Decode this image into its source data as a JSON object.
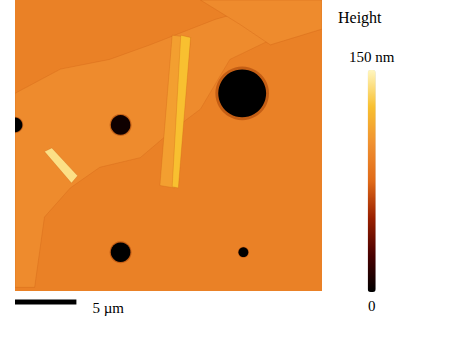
{
  "chart_data": {
    "type": "height_map",
    "title": "Height",
    "tick_labels": false,
    "xlim": [
      0,
      25
    ],
    "ylim": [
      0,
      24
    ],
    "background": 90,
    "colorbar": {
      "range": [
        0,
        150
      ],
      "ticks": [
        {
          "value": 150,
          "label": "150 nm"
        },
        0
      ]
    },
    "scale_bar": {
      "length": 5,
      "label": "5 µm"
    },
    "features": [
      {
        "shape": "polygon",
        "height": 97,
        "points": [
          [
            0,
            7.7
          ],
          [
            3.7,
            5.7
          ],
          [
            7.7,
            4.9
          ],
          [
            11.0,
            3.7
          ],
          [
            16.3,
            1.6
          ],
          [
            19.1,
            0.8
          ],
          [
            21.6,
            2.9
          ],
          [
            17.5,
            4.9
          ],
          [
            15.1,
            9.0
          ],
          [
            13.0,
            10.6
          ],
          [
            10.2,
            13.0
          ],
          [
            6.9,
            13.8
          ],
          [
            4.5,
            15.5
          ],
          [
            2.4,
            17.9
          ],
          [
            1.6,
            23.7
          ],
          [
            0,
            23.7
          ]
        ]
      },
      {
        "shape": "polygon",
        "height": 97,
        "points": [
          [
            15.1,
            0
          ],
          [
            25,
            0
          ],
          [
            25,
            2.4
          ],
          [
            20.8,
            3.7
          ],
          [
            18.3,
            2.0
          ]
        ]
      },
      {
        "shape": "polygon",
        "height": 108,
        "points": [
          [
            12.8,
            2.9
          ],
          [
            14.3,
            3.1
          ],
          [
            13.0,
            15.5
          ],
          [
            11.8,
            15.3
          ]
        ]
      },
      {
        "shape": "polygon",
        "height": 125,
        "points": [
          [
            13.5,
            2.9
          ],
          [
            14.3,
            3.1
          ],
          [
            13.3,
            15.5
          ],
          [
            12.8,
            15.4
          ]
        ]
      },
      {
        "shape": "polygon",
        "height": 140,
        "points": [
          [
            2.4,
            12.5
          ],
          [
            3.0,
            12.2
          ],
          [
            5.1,
            14.5
          ],
          [
            4.6,
            15.1
          ]
        ]
      },
      {
        "shape": "circle",
        "height": 0,
        "x": 18.5,
        "y": 7.7,
        "r": 1.95
      },
      {
        "shape": "circle",
        "height": 5,
        "x": 8.6,
        "y": 10.3,
        "r": 0.8
      },
      {
        "shape": "circle",
        "height": 0,
        "x": 0,
        "y": 10.3,
        "r": 0.6
      },
      {
        "shape": "circle",
        "height": 0,
        "x": 8.6,
        "y": 20.8,
        "r": 0.8
      },
      {
        "shape": "circle",
        "height": 0,
        "x": 18.6,
        "y": 20.8,
        "r": 0.4
      }
    ]
  }
}
